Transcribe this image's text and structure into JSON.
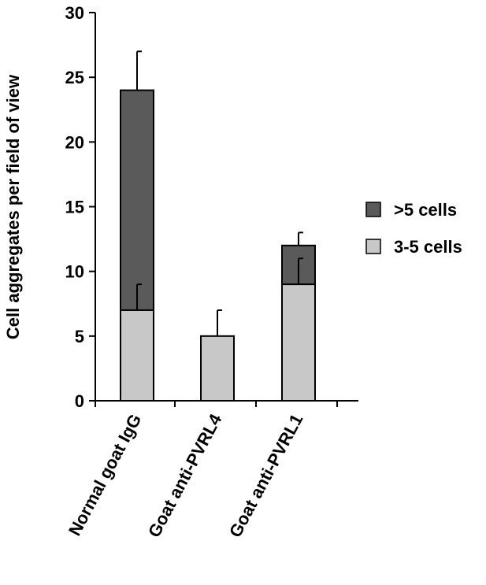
{
  "chart_data": {
    "type": "bar",
    "stacked": true,
    "categories": [
      "Normal goat IgG",
      "Goat anti-PVRL4",
      "Goat anti-PVRL1"
    ],
    "series": [
      {
        "name": "3-5 cells",
        "values": [
          7,
          5,
          9
        ],
        "errors": [
          2,
          2,
          2
        ],
        "color": "#c8c8c8"
      },
      {
        "name": ">5 cells",
        "values": [
          17,
          0,
          3
        ],
        "errors": [
          3,
          0,
          1
        ],
        "color": "#5a5a5a"
      }
    ],
    "ylabel": "Cell aggregates per field of view",
    "xlabel": "",
    "ylim": [
      0,
      30
    ],
    "yticks": [
      0,
      5,
      10,
      15,
      20,
      25,
      30
    ],
    "grid": false,
    "legend": {
      "placement": "right",
      "entries": [
        {
          "label": ">5 cells",
          "color": "#5a5a5a"
        },
        {
          "label": "3-5 cells",
          "color": "#c8c8c8"
        }
      ]
    }
  }
}
